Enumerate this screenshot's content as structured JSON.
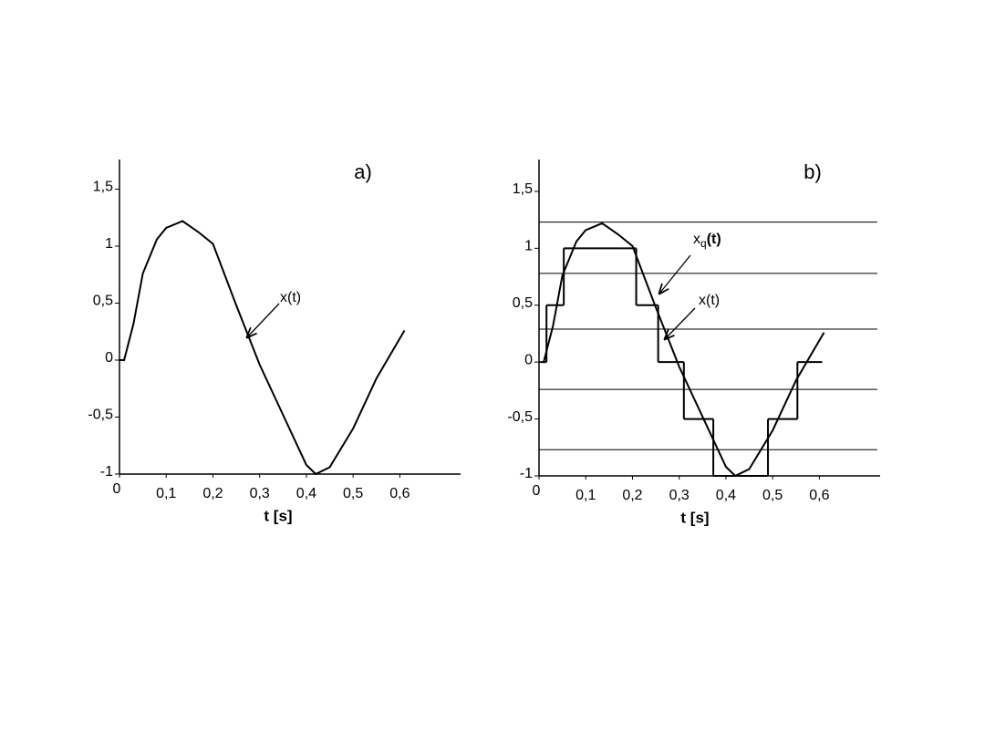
{
  "chart_data": [
    {
      "type": "line",
      "title": "a)",
      "xlabel": "t [s]",
      "xlim": [
        0,
        0.73
      ],
      "ylim": [
        -1,
        1.76
      ],
      "xticks": [
        0,
        {
          "value": 0.1,
          "label": "0,1"
        },
        {
          "value": 0.2,
          "label": "0,2"
        },
        {
          "value": 0.3,
          "label": "0,3"
        },
        {
          "value": 0.4,
          "label": "0,4"
        },
        {
          "value": 0.5,
          "label": "0,5"
        },
        {
          "value": 0.6,
          "label": "0,6"
        }
      ],
      "yticks": [
        -1,
        {
          "value": -0.5,
          "label": "-0,5"
        },
        0,
        {
          "value": 0.5,
          "label": "0,5"
        },
        1,
        {
          "value": 1.5,
          "label": "1,5"
        }
      ],
      "series": [
        {
          "label": "x(t)",
          "color": "#000000",
          "x": [
            0,
            0.01,
            0.03,
            0.05,
            0.08,
            0.1,
            0.135,
            0.17,
            0.2,
            0.25,
            0.3,
            0.35,
            0.4,
            0.42,
            0.45,
            0.5,
            0.55,
            0.61
          ],
          "values": [
            0,
            0,
            0.32,
            0.76,
            1.06,
            1.16,
            1.22,
            1.12,
            1.02,
            0.48,
            -0.04,
            -0.48,
            -0.92,
            -1,
            -0.94,
            -0.6,
            -0.16,
            0.26
          ]
        }
      ]
    },
    {
      "type": "line",
      "title": "b)",
      "xlabel": "t [s]",
      "xlim": [
        0,
        0.73
      ],
      "ylim": [
        -1,
        1.78
      ],
      "xticks": [
        0,
        {
          "value": 0.1,
          "label": "0,1"
        },
        {
          "value": 0.2,
          "label": "0,2"
        },
        {
          "value": 0.3,
          "label": "0,3"
        },
        {
          "value": 0.4,
          "label": "0,4"
        },
        {
          "value": 0.5,
          "label": "0,5"
        },
        {
          "value": 0.6,
          "label": "0,6"
        }
      ],
      "yticks": [
        -1,
        {
          "value": -0.5,
          "label": "-0,5"
        },
        0,
        {
          "value": 0.5,
          "label": "0,5"
        },
        1,
        {
          "value": 1.5,
          "label": "1,5"
        }
      ],
      "hlines": [
        1.23,
        0.78,
        0.29,
        -0.24,
        -0.77
      ],
      "series": [
        {
          "label": "x(t)",
          "color": "#000000",
          "x": [
            0.01,
            0.03,
            0.05,
            0.08,
            0.1,
            0.135,
            0.17,
            0.2,
            0.25,
            0.3,
            0.35,
            0.4,
            0.42,
            0.45,
            0.5,
            0.55,
            0.61
          ],
          "values": [
            0,
            0.32,
            0.76,
            1.06,
            1.16,
            1.22,
            1.12,
            1.02,
            0.48,
            -0.04,
            -0.48,
            -0.92,
            -1,
            -0.94,
            -0.6,
            -0.16,
            0.26
          ]
        },
        {
          "label": {
            "base": "x",
            "sub": "q",
            "tail": "(t)"
          },
          "style": "step",
          "color": "#000000",
          "bins": [
            0,
            0.016,
            0.053,
            0.208,
            0.255,
            0.31,
            0.373,
            0.49,
            0.553,
            0.606
          ],
          "values": [
            0,
            0.5,
            1,
            0.5,
            0,
            -0.5,
            -1,
            -0.5,
            0
          ]
        }
      ]
    }
  ]
}
